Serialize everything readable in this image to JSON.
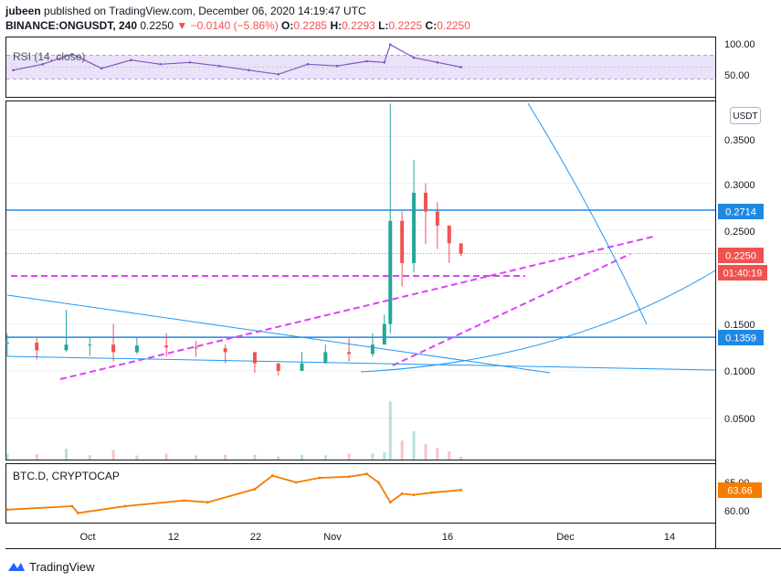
{
  "header": {
    "user": "jubeen",
    "published_text": "published on TradingView.com, December 06, 2020 14:19:47 UTC",
    "symbol": "BINANCE:ONGUSDT, 240",
    "last_price": "0.2250",
    "change": "▼ −0.0140 (−5.86%)",
    "o_label": "O:",
    "o_value": "0.2285",
    "h_label": "H:",
    "h_value": "0.2293",
    "l_label": "L:",
    "l_value": "0.2225",
    "c_label": "C:",
    "c_value": "0.2250"
  },
  "rsi_pane": {
    "label": "RSI (14, close)",
    "tick_labels": [
      "100.00",
      "50.00"
    ],
    "band": [
      30,
      70
    ],
    "ylim": [
      0,
      100
    ]
  },
  "main_pane": {
    "currency_label": "USDT",
    "tick_labels": [
      "0.3500",
      "0.3000",
      "0.2500",
      "0.1500",
      "0.1000",
      "0.0500"
    ],
    "price_tags": {
      "resistance": "0.2714",
      "last": "0.2250",
      "countdown": "01:40:19",
      "support": "0.1359"
    }
  },
  "btcd_pane": {
    "label": "BTC.D, CRYPTOCAP",
    "tick_labels": [
      "65.00",
      "60.00"
    ],
    "last_value": "63.66"
  },
  "x_axis": {
    "tick_labels": [
      "Oct",
      "12",
      "22",
      "Nov",
      "16",
      "Dec",
      "14"
    ]
  },
  "footer": {
    "brand": "TradingView"
  },
  "colors": {
    "up": "#26a69a",
    "down": "#ef5350",
    "rsi_line": "#7e57c2",
    "rsi_band": "#e1d5f5",
    "trend_blue": "#2196f3",
    "level_blue": "#1e88e5",
    "magenta": "#e040fb",
    "btcd": "#f57c00",
    "grid": "#e0e3eb"
  },
  "chart_data": [
    {
      "type": "line",
      "name_of_pane": "RSI",
      "ylim": [
        0,
        100
      ],
      "band": [
        30,
        70
      ],
      "x": [
        "Sep 21",
        "Sep 26",
        "Oct 1",
        "Oct 6",
        "Oct 11",
        "Oct 16",
        "Oct 21",
        "Oct 26",
        "Oct 31",
        "Nov 5",
        "Nov 10",
        "Nov 15",
        "Nov 20",
        "Nov 23",
        "Nov 24",
        "Nov 28",
        "Dec 2",
        "Dec 6"
      ],
      "values": [
        45,
        55,
        72,
        48,
        62,
        55,
        58,
        52,
        45,
        38,
        55,
        52,
        60,
        58,
        88,
        66,
        58,
        50
      ]
    },
    {
      "type": "candlestick",
      "name_of_pane": "BINANCE:ONGUSDT, 240",
      "ylim": [
        0,
        0.39
      ],
      "x": [
        "Sep 20",
        "Sep 25",
        "Sep 30",
        "Oct 4",
        "Oct 8",
        "Oct 12",
        "Oct 17",
        "Oct 22",
        "Oct 27",
        "Nov 1",
        "Nov 5",
        "Nov 9",
        "Nov 13",
        "Nov 17",
        "Nov 21",
        "Nov 23",
        "Nov 24",
        "Nov 26",
        "Nov 28",
        "Nov 30",
        "Dec 2",
        "Dec 4",
        "Dec 6"
      ],
      "close": [
        0.13,
        0.122,
        0.128,
        0.128,
        0.12,
        0.127,
        0.125,
        0.124,
        0.12,
        0.108,
        0.1,
        0.108,
        0.12,
        0.118,
        0.128,
        0.15,
        0.26,
        0.215,
        0.29,
        0.27,
        0.255,
        0.236,
        0.225
      ],
      "high": [
        0.14,
        0.135,
        0.165,
        0.135,
        0.15,
        0.135,
        0.14,
        0.132,
        0.128,
        0.118,
        0.108,
        0.12,
        0.128,
        0.135,
        0.14,
        0.16,
        0.385,
        0.27,
        0.325,
        0.3,
        0.28,
        0.25,
        0.235
      ],
      "low": [
        0.115,
        0.112,
        0.12,
        0.116,
        0.11,
        0.118,
        0.115,
        0.115,
        0.108,
        0.098,
        0.095,
        0.1,
        0.11,
        0.11,
        0.115,
        0.13,
        0.14,
        0.19,
        0.205,
        0.235,
        0.23,
        0.215,
        0.2225
      ],
      "levels": [
        0.2714,
        0.1359,
        0.225
      ]
    },
    {
      "type": "line",
      "name_of_pane": "BTC.D, CRYPTOCAP",
      "ylim": [
        58,
        67
      ],
      "x": [
        "Sep 20",
        "Oct 1",
        "Oct 2",
        "Oct 10",
        "Oct 20",
        "Oct 24",
        "Nov 1",
        "Nov 4",
        "Nov 8",
        "Nov 12",
        "Nov 17",
        "Nov 20",
        "Nov 22",
        "Nov 24",
        "Nov 26",
        "Nov 28",
        "Dec 1",
        "Dec 6"
      ],
      "values": [
        60.2,
        60.8,
        59.6,
        60.8,
        61.8,
        61.5,
        63.8,
        66.2,
        65.0,
        65.8,
        66.0,
        66.5,
        65.0,
        61.5,
        63.0,
        62.8,
        63.2,
        63.66
      ]
    }
  ]
}
